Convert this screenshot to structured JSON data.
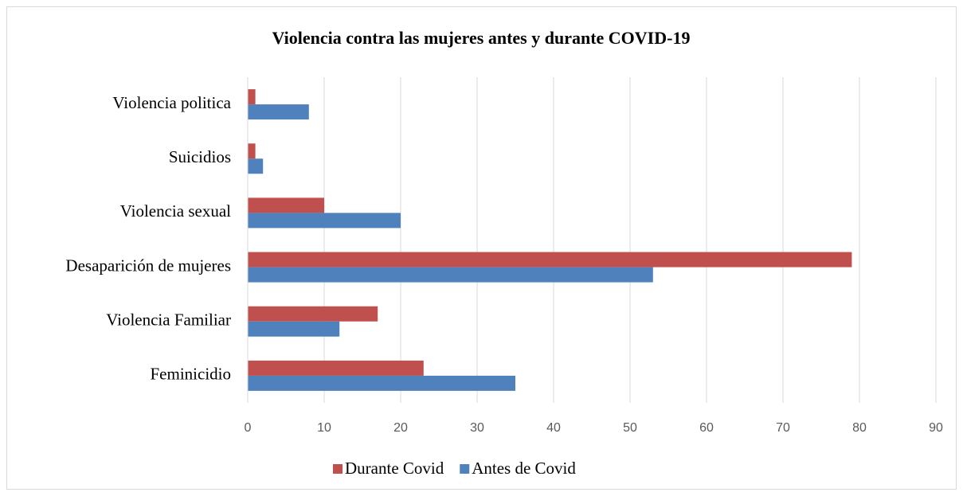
{
  "chart_data": {
    "type": "bar",
    "orientation": "horizontal",
    "title": "Violencia contra las mujeres antes y durante COVID-19",
    "categories": [
      "Violencia politica",
      "Suicidios",
      "Violencia sexual",
      "Desaparición de mujeres",
      "Violencia Familiar",
      "Feminicidio"
    ],
    "series": [
      {
        "name": "Durante Covid",
        "color": "#c0504d",
        "values": [
          1,
          1,
          10,
          79,
          17,
          23
        ]
      },
      {
        "name": "Antes de Covid",
        "color": "#4f81bd",
        "values": [
          8,
          2,
          20,
          53,
          12,
          35
        ]
      }
    ],
    "xlim": [
      0,
      90
    ],
    "xticks": [
      0,
      10,
      20,
      30,
      40,
      50,
      60,
      70,
      80,
      90
    ],
    "grid": true,
    "legend": "bottom"
  }
}
